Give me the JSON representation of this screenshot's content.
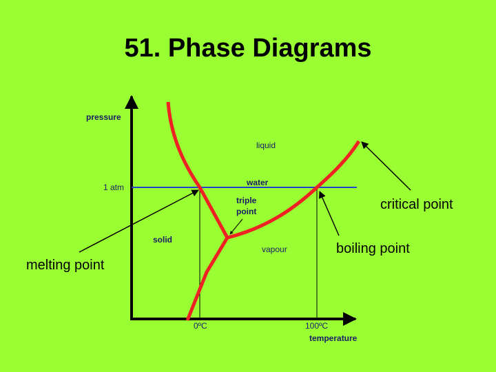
{
  "title": "51. Phase Diagrams",
  "diagram": {
    "y_label": "pressure",
    "x_label": "temperature",
    "regions": {
      "liquid": "liquid",
      "solid": "solid",
      "vapour": "vapour"
    },
    "pressure_level": "1 atm",
    "water_line": "water",
    "triple_point": [
      "triple",
      "point"
    ],
    "ticks": {
      "melting": "0ºC",
      "boiling": "100ºC"
    }
  },
  "annotations": {
    "critical_point": "critical point",
    "boiling_point": "boiling point",
    "melting_point": "melting point"
  }
}
